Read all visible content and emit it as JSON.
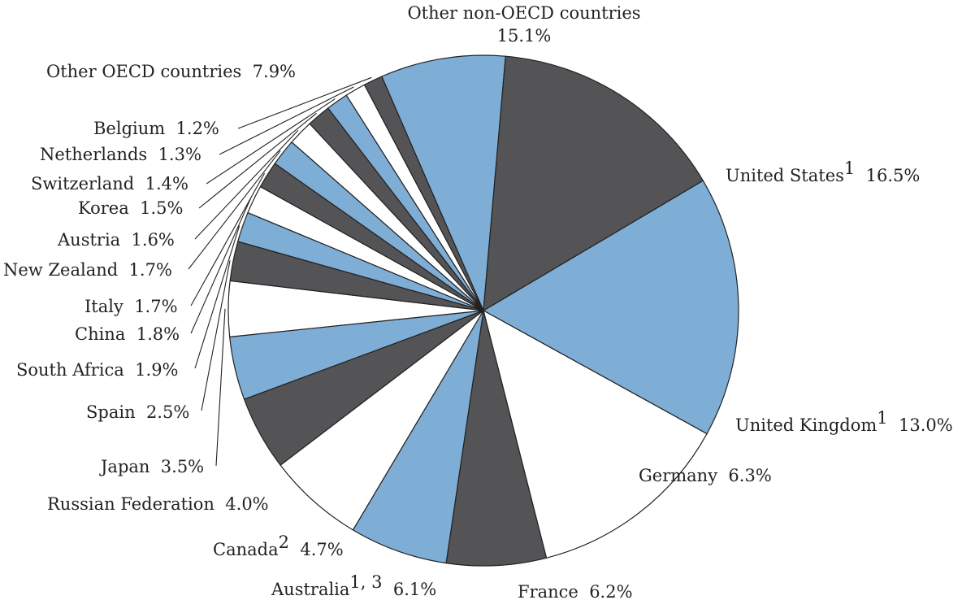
{
  "chart_data": {
    "type": "pie",
    "title": "",
    "slices": [
      {
        "label": "United States",
        "sup": "1",
        "value": 16.5,
        "value_label": "16.5%",
        "color": "#7eadd5"
      },
      {
        "label": "United Kingdom",
        "sup": "1",
        "value": 13.0,
        "value_label": "13.0%",
        "color": "#ffffff"
      },
      {
        "label": "Germany",
        "sup": "",
        "value": 6.3,
        "value_label": "6.3%",
        "color": "#545456"
      },
      {
        "label": "France",
        "sup": "",
        "value": 6.2,
        "value_label": "6.2%",
        "color": "#7eadd5"
      },
      {
        "label": "Australia",
        "sup": "1, 3",
        "value": 6.1,
        "value_label": "6.1%",
        "color": "#ffffff"
      },
      {
        "label": "Canada",
        "sup": "2",
        "value": 4.7,
        "value_label": "4.7%",
        "color": "#545456"
      },
      {
        "label": "Russian Federation",
        "sup": "",
        "value": 4.0,
        "value_label": "4.0%",
        "color": "#7eadd5"
      },
      {
        "label": "Japan",
        "sup": "",
        "value": 3.5,
        "value_label": "3.5%",
        "color": "#ffffff"
      },
      {
        "label": "Spain",
        "sup": "",
        "value": 2.5,
        "value_label": "2.5%",
        "color": "#545456"
      },
      {
        "label": "South Africa",
        "sup": "",
        "value": 1.9,
        "value_label": "1.9%",
        "color": "#7eadd5"
      },
      {
        "label": "China",
        "sup": "",
        "value": 1.8,
        "value_label": "1.8%",
        "color": "#ffffff"
      },
      {
        "label": "Italy",
        "sup": "",
        "value": 1.7,
        "value_label": "1.7%",
        "color": "#545456"
      },
      {
        "label": "New Zealand",
        "sup": "",
        "value": 1.7,
        "value_label": "1.7%",
        "color": "#7eadd5"
      },
      {
        "label": "Austria",
        "sup": "",
        "value": 1.6,
        "value_label": "1.6%",
        "color": "#ffffff"
      },
      {
        "label": "Korea",
        "sup": "",
        "value": 1.5,
        "value_label": "1.5%",
        "color": "#545456"
      },
      {
        "label": "Switzerland",
        "sup": "",
        "value": 1.4,
        "value_label": "1.4%",
        "color": "#7eadd5"
      },
      {
        "label": "Netherlands",
        "sup": "",
        "value": 1.3,
        "value_label": "1.3%",
        "color": "#ffffff"
      },
      {
        "label": "Belgium",
        "sup": "",
        "value": 1.2,
        "value_label": "1.2%",
        "color": "#545456"
      },
      {
        "label": "Other OECD countries",
        "sup": "",
        "value": 7.9,
        "value_label": "7.9%",
        "color": "#7eadd5"
      },
      {
        "label": "Other non-OECD countries",
        "sup": "",
        "value": 15.1,
        "value_label": "15.1%",
        "color": "#545456"
      }
    ]
  }
}
